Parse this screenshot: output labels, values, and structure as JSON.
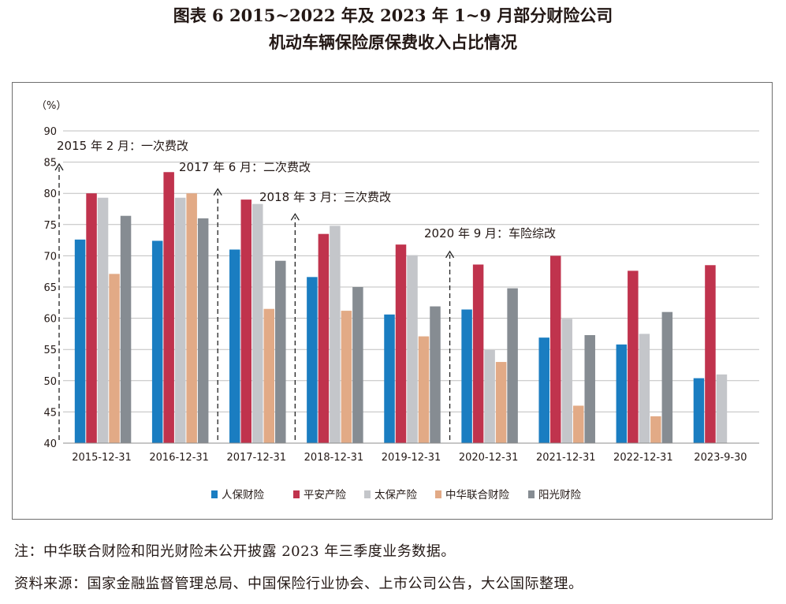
{
  "title": {
    "line1": "图表 6  2015~2022 年及 2023 年 1~9 月部分财险公司",
    "line2": "机动车辆保险原保费收入占比情况"
  },
  "chart_data": {
    "type": "bar",
    "ylabel": "（%）",
    "ylim": [
      40,
      90
    ],
    "yticks": [
      40,
      45,
      50,
      55,
      60,
      65,
      70,
      75,
      80,
      85,
      90
    ],
    "grid": true,
    "legend_position": "bottom",
    "categories": [
      "2015-12-31",
      "2016-12-31",
      "2017-12-31",
      "2018-12-31",
      "2019-12-31",
      "2020-12-31",
      "2021-12-31",
      "2022-12-31",
      "2023-9-30"
    ],
    "series": [
      {
        "name": "人保财险",
        "color": "#1a7dc1",
        "values": [
          72.6,
          72.4,
          71.0,
          66.6,
          60.6,
          61.4,
          56.9,
          55.8,
          50.4
        ]
      },
      {
        "name": "平安产险",
        "color": "#c0334d",
        "values": [
          80.0,
          83.4,
          79.0,
          73.5,
          71.8,
          68.6,
          70.0,
          67.6,
          68.5
        ]
      },
      {
        "name": "太保产险",
        "color": "#c4c6ca",
        "values": [
          79.3,
          79.3,
          78.3,
          74.8,
          70.1,
          54.9,
          59.9,
          57.5,
          51.0
        ]
      },
      {
        "name": "中华联合财险",
        "color": "#e2aa86",
        "values": [
          67.1,
          80.0,
          61.5,
          61.2,
          57.1,
          53.0,
          46.0,
          44.3,
          null
        ]
      },
      {
        "name": "阳光财险",
        "color": "#868c92",
        "values": [
          76.4,
          76.0,
          69.2,
          65.0,
          61.9,
          64.8,
          57.3,
          61.0,
          null
        ]
      }
    ],
    "annotations": [
      {
        "text": "2015 年 2 月：一次费改",
        "category_index": 0
      },
      {
        "text": "2017 年 6 月：二次费改",
        "category_index": 2
      },
      {
        "text": "2018 年 3 月：三次费改",
        "category_index": 3
      },
      {
        "text": "2020 年 9 月：车险综改",
        "category_index": 5
      }
    ]
  },
  "notes": {
    "note": "注：中华联合财险和阳光财险未公开披露 2023 年三季度业务数据。",
    "source": "资料来源：国家金融监督管理总局、中国保险行业协会、上市公司公告，大公国际整理。"
  }
}
